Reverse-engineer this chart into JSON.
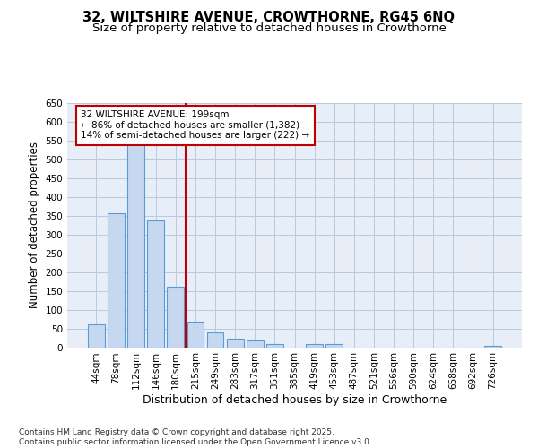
{
  "title_line1": "32, WILTSHIRE AVENUE, CROWTHORNE, RG45 6NQ",
  "title_line2": "Size of property relative to detached houses in Crowthorne",
  "xlabel": "Distribution of detached houses by size in Crowthorne",
  "ylabel": "Number of detached properties",
  "categories": [
    "44sqm",
    "78sqm",
    "112sqm",
    "146sqm",
    "180sqm",
    "215sqm",
    "249sqm",
    "283sqm",
    "317sqm",
    "351sqm",
    "385sqm",
    "419sqm",
    "453sqm",
    "487sqm",
    "521sqm",
    "556sqm",
    "590sqm",
    "624sqm",
    "658sqm",
    "692sqm",
    "726sqm"
  ],
  "values": [
    60,
    357,
    545,
    338,
    160,
    68,
    40,
    23,
    17,
    9,
    0,
    8,
    9,
    0,
    0,
    0,
    0,
    0,
    0,
    0,
    3
  ],
  "bar_color": "#c5d8f0",
  "bar_edge_color": "#5b9bd5",
  "vline_x": 4.5,
  "vline_color": "#c00000",
  "annotation_text": "32 WILTSHIRE AVENUE: 199sqm\n← 86% of detached houses are smaller (1,382)\n14% of semi-detached houses are larger (222) →",
  "annotation_box_color": "#c00000",
  "ylim": [
    0,
    650
  ],
  "yticks": [
    0,
    50,
    100,
    150,
    200,
    250,
    300,
    350,
    400,
    450,
    500,
    550,
    600,
    650
  ],
  "background_color": "#e8eef8",
  "grid_color": "#b8c8e0",
  "footer_text": "Contains HM Land Registry data © Crown copyright and database right 2025.\nContains public sector information licensed under the Open Government Licence v3.0.",
  "title_fontsize": 10.5,
  "subtitle_fontsize": 9.5,
  "xlabel_fontsize": 9,
  "ylabel_fontsize": 8.5,
  "tick_fontsize": 7.5,
  "annotation_fontsize": 7.5,
  "footer_fontsize": 6.5
}
